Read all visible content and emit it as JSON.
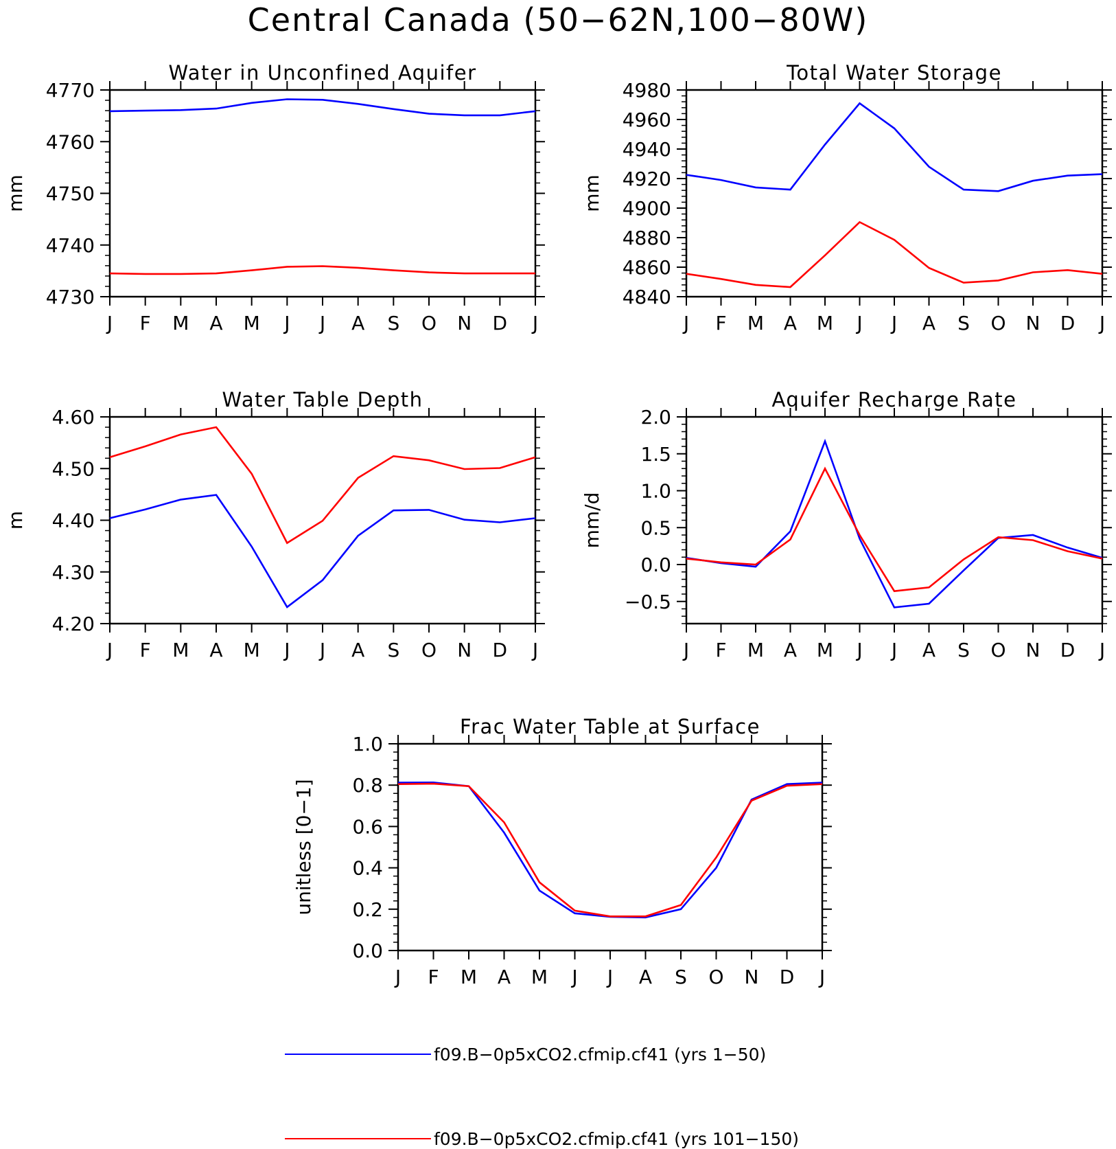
{
  "figure": {
    "title": "Central Canada (50−62N,100−80W)"
  },
  "legend": [
    {
      "label": "f09.B−0p5xCO2.cfmip.cf41 (yrs 1−50)",
      "color": "#0000ff"
    },
    {
      "label": "f09.B−0p5xCO2.cfmip.cf41 (yrs 101−150)",
      "color": "#ff0000"
    }
  ],
  "chart_data": [
    {
      "id": "aquifer",
      "type": "line",
      "title": "Water in Unconfined Aquifer",
      "ylabel": "mm",
      "categories": [
        "J",
        "F",
        "M",
        "A",
        "M",
        "J",
        "J",
        "A",
        "S",
        "O",
        "N",
        "D",
        "J"
      ],
      "ylim": [
        4730,
        4770
      ],
      "yticks": [
        4730,
        4740,
        4750,
        4760,
        4770
      ],
      "yticklabels": [
        "4730",
        "4740",
        "4750",
        "4760",
        "4770"
      ],
      "minor_step": 2,
      "series": [
        {
          "color": "#0000ff",
          "values": [
            4765.9,
            4766.0,
            4766.1,
            4766.4,
            4767.5,
            4768.2,
            4768.1,
            4767.3,
            4766.3,
            4765.4,
            4765.1,
            4765.1,
            4765.9
          ]
        },
        {
          "color": "#ff0000",
          "values": [
            4734.5,
            4734.4,
            4734.4,
            4734.5,
            4735.1,
            4735.8,
            4735.9,
            4735.6,
            4735.1,
            4734.7,
            4734.5,
            4734.5,
            4734.5
          ]
        }
      ]
    },
    {
      "id": "storage",
      "type": "line",
      "title": "Total Water Storage",
      "ylabel": "mm",
      "categories": [
        "J",
        "F",
        "M",
        "A",
        "M",
        "J",
        "J",
        "A",
        "S",
        "O",
        "N",
        "D",
        "J"
      ],
      "ylim": [
        4840,
        4980
      ],
      "yticks": [
        4840,
        4860,
        4880,
        4900,
        4920,
        4940,
        4960,
        4980
      ],
      "yticklabels": [
        "4840",
        "4860",
        "4880",
        "4900",
        "4920",
        "4940",
        "4960",
        "4980"
      ],
      "minor_step": 4,
      "series": [
        {
          "color": "#0000ff",
          "values": [
            4922.5,
            4919.0,
            4914.0,
            4912.5,
            4943.0,
            4971.0,
            4954.0,
            4928.0,
            4912.5,
            4911.5,
            4918.5,
            4922.0,
            4923.0
          ]
        },
        {
          "color": "#ff0000",
          "values": [
            4855.5,
            4852.0,
            4848.0,
            4846.5,
            4868.0,
            4890.5,
            4878.5,
            4859.5,
            4849.5,
            4851.0,
            4856.5,
            4858.0,
            4855.5
          ]
        }
      ]
    },
    {
      "id": "wtd",
      "type": "line",
      "title": "Water Table Depth",
      "ylabel": "m",
      "categories": [
        "J",
        "F",
        "M",
        "A",
        "M",
        "J",
        "J",
        "A",
        "S",
        "O",
        "N",
        "D",
        "J"
      ],
      "ylim": [
        4.2,
        4.6
      ],
      "yticks": [
        4.2,
        4.3,
        4.4,
        4.5,
        4.6
      ],
      "yticklabels": [
        "4.20",
        "4.30",
        "4.40",
        "4.50",
        "4.60"
      ],
      "minor_step": 0.02,
      "series": [
        {
          "color": "#0000ff",
          "values": [
            4.404,
            4.421,
            4.44,
            4.449,
            4.349,
            4.232,
            4.284,
            4.37,
            4.419,
            4.42,
            4.401,
            4.396,
            4.404
          ]
        },
        {
          "color": "#ff0000",
          "values": [
            4.522,
            4.543,
            4.566,
            4.58,
            4.49,
            4.356,
            4.399,
            4.482,
            4.524,
            4.516,
            4.499,
            4.501,
            4.522
          ]
        }
      ]
    },
    {
      "id": "recharge",
      "type": "line",
      "title": "Aquifer Recharge Rate",
      "ylabel": "mm/d",
      "categories": [
        "J",
        "F",
        "M",
        "A",
        "M",
        "J",
        "J",
        "A",
        "S",
        "O",
        "N",
        "D",
        "J"
      ],
      "ylim": [
        -0.8,
        2.0
      ],
      "yticks": [
        -0.5,
        0.0,
        0.5,
        1.0,
        1.5,
        2.0
      ],
      "yticklabels": [
        "−0.5",
        "0.0",
        "0.5",
        "1.0",
        "1.5",
        "2.0"
      ],
      "minor_step": 0.1,
      "series": [
        {
          "color": "#0000ff",
          "values": [
            0.09,
            0.02,
            -0.03,
            0.45,
            1.67,
            0.35,
            -0.58,
            -0.53,
            -0.08,
            0.36,
            0.4,
            0.23,
            0.09
          ]
        },
        {
          "color": "#ff0000",
          "values": [
            0.08,
            0.03,
            0.0,
            0.34,
            1.3,
            0.4,
            -0.36,
            -0.31,
            0.07,
            0.37,
            0.33,
            0.18,
            0.08
          ]
        }
      ]
    },
    {
      "id": "frac",
      "type": "line",
      "title": "Frac Water Table at Surface",
      "ylabel": "unitless [0−1]",
      "categories": [
        "J",
        "F",
        "M",
        "A",
        "M",
        "J",
        "J",
        "A",
        "S",
        "O",
        "N",
        "D",
        "J"
      ],
      "ylim": [
        0.0,
        1.0
      ],
      "yticks": [
        0.0,
        0.2,
        0.4,
        0.6,
        0.8,
        1.0
      ],
      "yticklabels": [
        "0.0",
        "0.2",
        "0.4",
        "0.6",
        "0.8",
        "1.0"
      ],
      "minor_step": 0.04,
      "series": [
        {
          "color": "#0000ff",
          "values": [
            0.812,
            0.813,
            0.795,
            0.57,
            0.29,
            0.18,
            0.163,
            0.16,
            0.2,
            0.4,
            0.73,
            0.805,
            0.812
          ]
        },
        {
          "color": "#ff0000",
          "values": [
            0.805,
            0.807,
            0.795,
            0.62,
            0.33,
            0.193,
            0.165,
            0.165,
            0.22,
            0.45,
            0.725,
            0.797,
            0.805
          ]
        }
      ]
    }
  ]
}
